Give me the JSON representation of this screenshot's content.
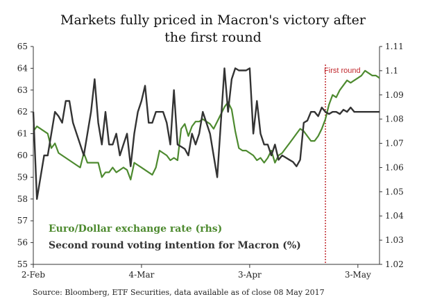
{
  "chart_data": {
    "type": "line",
    "title": "Markets fully priced in Macron's victory after the first round",
    "title_lines": [
      "Markets fully priced in Macron's victory after",
      "the first round"
    ],
    "x_tick_labels": [
      "2-Feb",
      "4-Mar",
      "3-Apr",
      "3-May"
    ],
    "x_tick_days": [
      0,
      30,
      60,
      90
    ],
    "x_range_days": [
      0,
      96
    ],
    "left_axis": {
      "ylim": [
        55,
        65
      ],
      "ticks": [
        "55",
        "56",
        "57",
        "58",
        "59",
        "60",
        "61",
        "62",
        "63",
        "64",
        "65"
      ]
    },
    "right_axis": {
      "ylim": [
        1.02,
        1.11
      ],
      "ticks": [
        "1.02",
        "1.03",
        "1.04",
        "1.05",
        "1.06",
        "1.07",
        "1.08",
        "1.09",
        "1.1",
        "1.11"
      ]
    },
    "annotation": {
      "label": "First round",
      "day": 81,
      "color": "#c0282d"
    },
    "series": [
      {
        "name": "Euro/Dollar exchange rate (rhs)",
        "axis": "right",
        "color": "#4d8a2f",
        "x_days": [
          0,
          1,
          2,
          3,
          4,
          5,
          6,
          7,
          8,
          9,
          10,
          11,
          12,
          13,
          14,
          15,
          16,
          17,
          18,
          19,
          20,
          21,
          22,
          23,
          24,
          25,
          26,
          27,
          28,
          29,
          30,
          31,
          32,
          33,
          34,
          35,
          36,
          37,
          38,
          39,
          40,
          41,
          42,
          43,
          44,
          45,
          46,
          47,
          48,
          49,
          50,
          51,
          52,
          53,
          54,
          55,
          56,
          57,
          58,
          59,
          60,
          61,
          62,
          63,
          64,
          65,
          66,
          67,
          68,
          69,
          70,
          71,
          72,
          73,
          74,
          75,
          76,
          77,
          78,
          79,
          80,
          81,
          82,
          83,
          84,
          85,
          86,
          87,
          88,
          89,
          90,
          91,
          92,
          93,
          94,
          95,
          96
        ],
        "values": [
          1.075,
          1.077,
          1.076,
          1.075,
          1.074,
          1.068,
          1.07,
          1.066,
          1.065,
          1.064,
          1.063,
          1.062,
          1.061,
          1.06,
          1.066,
          1.062,
          1.062,
          1.062,
          1.062,
          1.056,
          1.058,
          1.058,
          1.06,
          1.058,
          1.059,
          1.06,
          1.059,
          1.055,
          1.062,
          1.061,
          1.06,
          1.059,
          1.058,
          1.057,
          1.06,
          1.067,
          1.066,
          1.065,
          1.063,
          1.064,
          1.063,
          1.076,
          1.078,
          1.073,
          1.077,
          1.079,
          1.079,
          1.08,
          1.079,
          1.078,
          1.076,
          1.079,
          1.082,
          1.085,
          1.087,
          1.084,
          1.075,
          1.068,
          1.067,
          1.067,
          1.066,
          1.065,
          1.063,
          1.064,
          1.062,
          1.064,
          1.067,
          1.062,
          1.065,
          1.066,
          1.068,
          1.07,
          1.072,
          1.074,
          1.076,
          1.075,
          1.073,
          1.071,
          1.071,
          1.073,
          1.076,
          1.08,
          1.086,
          1.09,
          1.089,
          1.092,
          1.094,
          1.096,
          1.095,
          1.096,
          1.097,
          1.098,
          1.1,
          1.099,
          1.098,
          1.098,
          1.097
        ]
      },
      {
        "name": "Second round voting intention for Macron (%)",
        "axis": "left",
        "color": "#333333",
        "x_days": [
          0,
          1,
          2,
          3,
          4,
          5,
          6,
          7,
          8,
          9,
          10,
          11,
          12,
          13,
          14,
          15,
          16,
          17,
          18,
          19,
          20,
          21,
          22,
          23,
          24,
          25,
          26,
          27,
          28,
          29,
          30,
          31,
          32,
          33,
          34,
          35,
          36,
          37,
          38,
          39,
          40,
          41,
          42,
          43,
          44,
          45,
          46,
          47,
          48,
          49,
          50,
          51,
          52,
          53,
          54,
          55,
          56,
          57,
          58,
          59,
          60,
          61,
          62,
          63,
          64,
          65,
          66,
          67,
          68,
          69,
          70,
          71,
          72,
          73,
          74,
          75,
          76,
          77,
          78,
          79,
          80,
          81,
          82,
          83,
          84,
          85,
          86,
          87,
          88,
          89,
          90,
          91,
          92,
          93,
          94,
          95,
          96
        ],
        "values": [
          62,
          58,
          59,
          60,
          60,
          61,
          62,
          61.8,
          61.5,
          62.5,
          62.5,
          61.5,
          61,
          60.5,
          60,
          61,
          62,
          63.5,
          61.5,
          60.5,
          62,
          60.5,
          60.5,
          61,
          60,
          60.5,
          61,
          59.5,
          61,
          62,
          62.5,
          63.2,
          61.5,
          61.5,
          62,
          62,
          62,
          61.5,
          60.5,
          63,
          60.5,
          60.4,
          60.3,
          60,
          61,
          60.5,
          61,
          62,
          61.5,
          61,
          60,
          59,
          61.5,
          64,
          62,
          63.5,
          64,
          63.9,
          63.9,
          63.9,
          64,
          61,
          62.5,
          61,
          60.5,
          60.5,
          60,
          60.5,
          59.8,
          60,
          59.9,
          59.8,
          59.7,
          59.5,
          59.8,
          61.5,
          61.6,
          62,
          62,
          61.8,
          62.2,
          62,
          61.9,
          62,
          62,
          61.9,
          62.1,
          62,
          62.2,
          62,
          62,
          62,
          62,
          62,
          62,
          62,
          62
        ]
      }
    ],
    "legend": [
      "Euro/Dollar exchange rate (rhs)",
      "Second round voting intention for Macron (%)"
    ],
    "grid": false
  },
  "source_text": "Source: Bloomberg, ETF Securities, data available as of close 08 May 2017"
}
